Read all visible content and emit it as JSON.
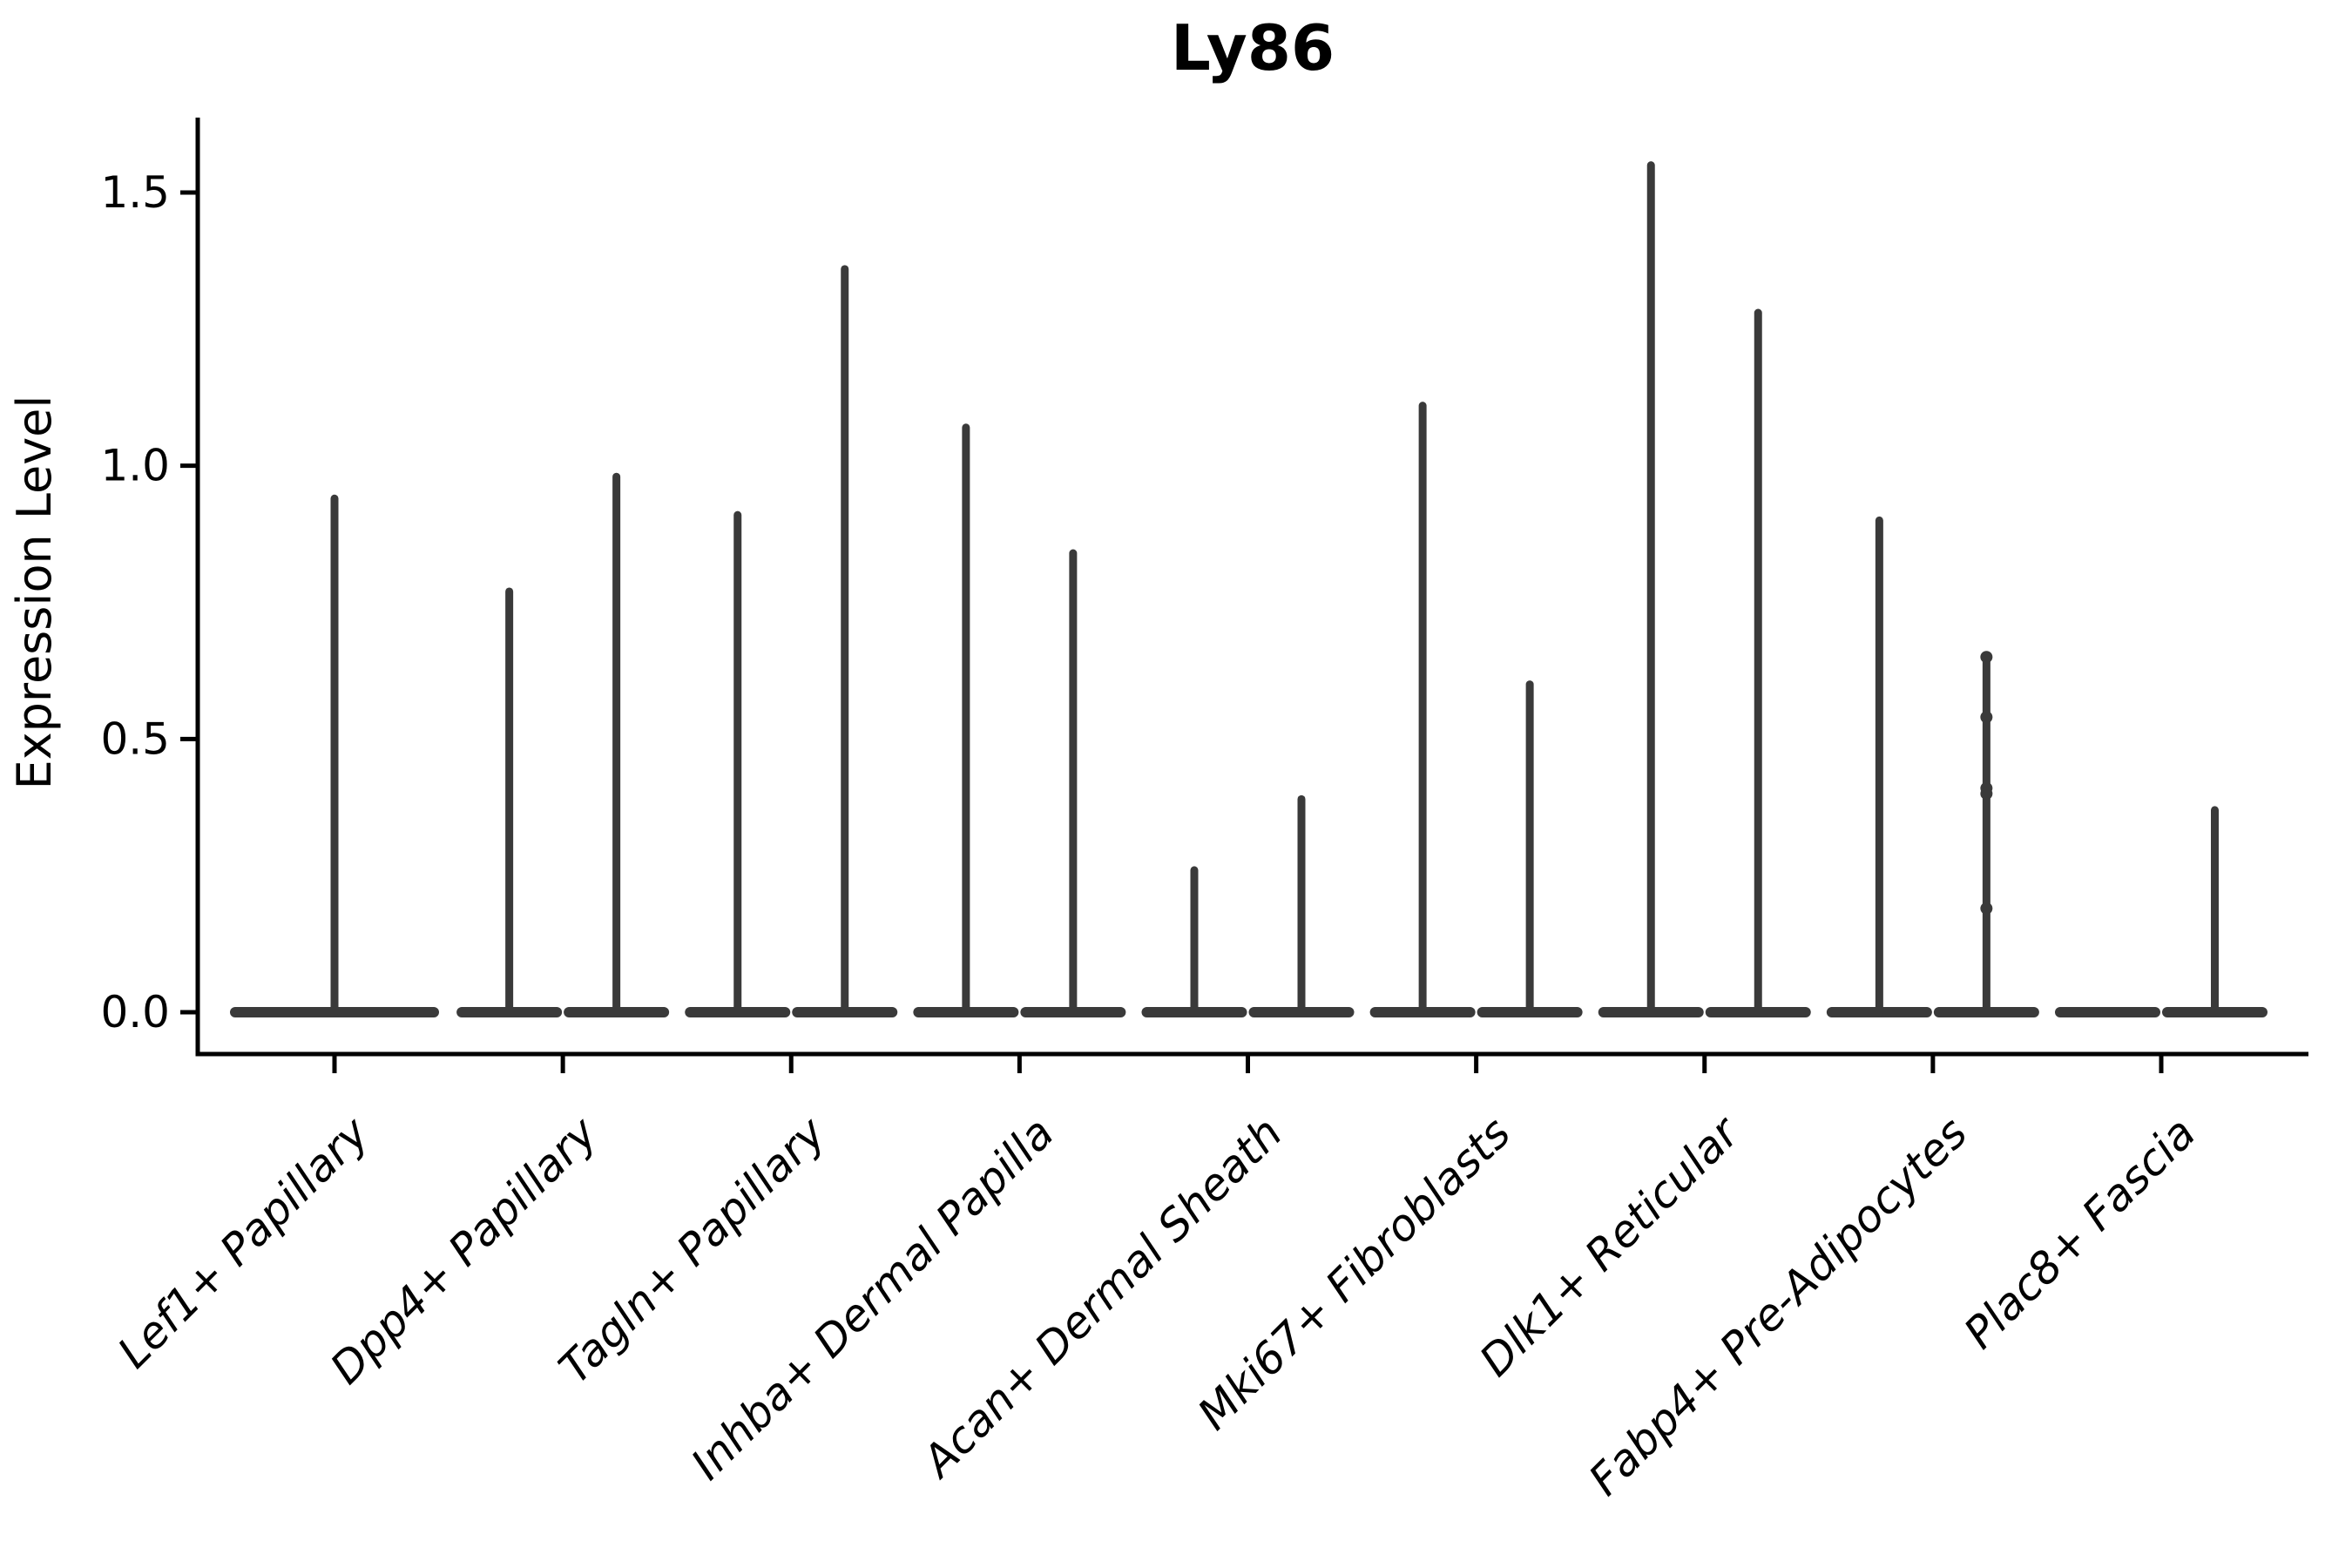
{
  "page": {
    "background_color": "#ffffff"
  },
  "chart_data": {
    "type": "violin",
    "title": "Ly86",
    "xlabel": "",
    "ylabel": "Expression Level",
    "legend": "none",
    "grid": false,
    "violin_color": "#3a3a3a",
    "axis_color": "#000000",
    "ylim": [
      -0.05,
      1.62
    ],
    "ytick_labels": [
      "0.0",
      "0.5",
      "1.0",
      "1.5"
    ],
    "ytick_values": [
      0.0,
      0.5,
      1.0,
      1.5
    ],
    "categories": [
      "Lef1+ Papillary",
      "Dpp4+ Papillary",
      "Tagln+ Papillary",
      "Inhba+ Dermal Papilla",
      "Acan+ Dermal Sheath",
      "Mki67+ Fibroblasts",
      "Dlk1+ Reticular",
      "Fabp4+ Pre-Adipocytes",
      "Plac8+ Fascia"
    ],
    "series": [
      {
        "name": "violin-left",
        "max_expression": [
          0.94,
          0.77,
          0.91,
          1.07,
          0.26,
          1.11,
          1.55,
          0.9,
          0.0
        ]
      },
      {
        "name": "violin-right",
        "max_expression": [
          null,
          0.98,
          1.36,
          0.84,
          0.39,
          0.6,
          1.28,
          0.65,
          0.37
        ]
      }
    ],
    "points": [
      {
        "category_index": 7,
        "series_index": 1,
        "values": [
          0.65,
          0.54,
          0.41,
          0.4,
          0.19
        ]
      }
    ]
  }
}
